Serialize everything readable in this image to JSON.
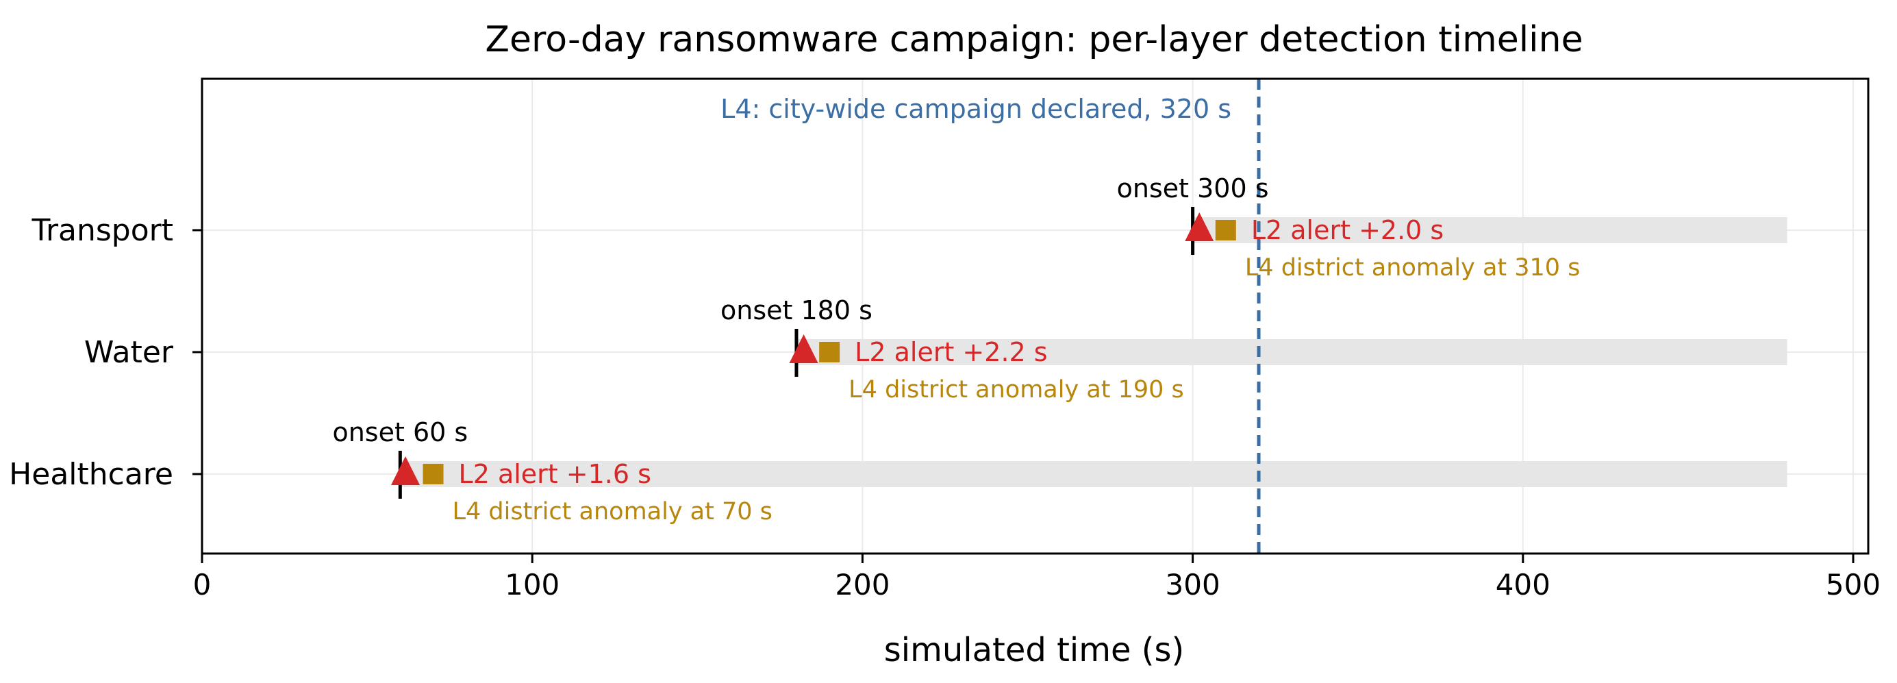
{
  "chart_data": {
    "type": "timeline",
    "title": "Zero-day ransomware campaign: per-layer detection timeline",
    "xlabel": "simulated time (s)",
    "ylabel": "",
    "xlim": [
      0,
      505
    ],
    "x_ticks": [
      0,
      100,
      200,
      300,
      400,
      500
    ],
    "x_tick_labels": [
      "0",
      "100",
      "200",
      "300",
      "400",
      "500"
    ],
    "grid": true,
    "timeline_end": 480,
    "colors": {
      "bar": "#e6e6e6",
      "onset": "#000000",
      "l2": "#d62728",
      "l4": "#b8860b",
      "campaign": "#3a6ea5"
    },
    "sectors": [
      {
        "name": "Transport",
        "onset": 300,
        "onset_label": "onset 300 s",
        "l2_time": 302.0,
        "l2_label": "L2 alert +2.0 s",
        "l4_time": 310,
        "l4_label": "L4 district anomaly at 310 s"
      },
      {
        "name": "Water",
        "onset": 180,
        "onset_label": "onset 180 s",
        "l2_time": 182.2,
        "l2_label": "L2 alert +2.2 s",
        "l4_time": 190,
        "l4_label": "L4 district anomaly at 190 s"
      },
      {
        "name": "Healthcare",
        "onset": 60,
        "onset_label": "onset 60 s",
        "l2_time": 61.6,
        "l2_label": "L2 alert +1.6 s",
        "l4_time": 70,
        "l4_label": "L4 district anomaly at 70 s"
      }
    ],
    "campaign": {
      "time": 320,
      "label": "L4: city-wide campaign declared, 320 s"
    }
  }
}
